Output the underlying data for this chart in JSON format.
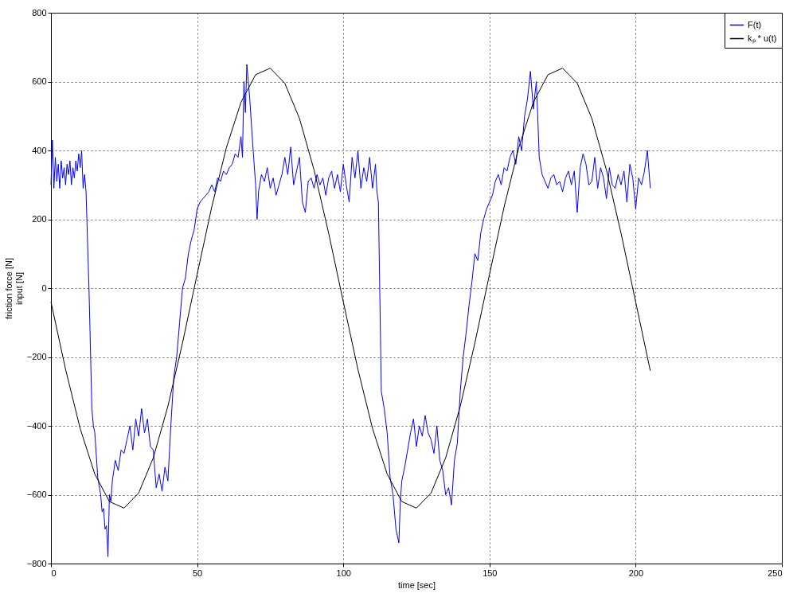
{
  "chart_data": {
    "type": "line",
    "xlabel": "time [sec]",
    "ylabel": "friction force [N]\ninput [N]",
    "xlim": [
      0,
      250
    ],
    "ylim": [
      -800,
      800
    ],
    "xticks": [
      0,
      50,
      100,
      150,
      200,
      250
    ],
    "yticks": [
      -800,
      -600,
      -400,
      -200,
      0,
      200,
      400,
      600,
      800
    ],
    "grid": true,
    "legend": "top right",
    "line_style": "solid",
    "series": [
      {
        "name": "F(t)",
        "color": "#0000ff",
        "x": [
          0,
          0.5,
          1,
          1.5,
          2,
          2.5,
          3,
          3.5,
          4,
          4.5,
          5,
          5.5,
          6,
          6.5,
          7,
          7.5,
          8,
          8.5,
          9,
          9.5,
          10,
          10.5,
          11,
          11.5,
          12,
          13,
          14,
          14.5,
          15,
          16,
          17,
          17.5,
          18,
          18.5,
          19,
          19.5,
          20,
          20.5,
          21,
          22,
          23,
          24,
          25,
          26,
          27,
          28,
          29,
          30,
          31,
          32,
          33,
          34,
          35,
          36,
          37,
          38,
          39,
          40,
          41,
          42,
          43,
          44,
          45,
          46,
          47,
          48,
          49,
          50,
          51,
          52,
          53,
          54,
          55,
          56,
          57,
          58,
          59,
          60,
          61,
          62,
          63,
          64,
          65,
          65.5,
          66,
          66.5,
          67,
          68,
          69,
          70,
          70.5,
          71,
          72,
          73,
          74,
          75,
          76,
          77,
          78,
          79,
          80,
          81,
          82,
          83,
          84,
          85,
          86,
          87,
          88,
          89,
          90,
          91,
          92,
          93,
          94,
          95,
          96,
          97,
          98,
          99,
          100,
          101,
          102,
          103,
          104,
          105,
          106,
          107,
          108,
          109,
          110,
          111,
          111.5,
          112,
          113,
          114,
          115,
          116,
          117,
          118,
          119,
          119.5,
          120,
          121,
          122,
          123,
          124,
          125,
          126,
          127,
          128,
          129,
          130,
          131,
          132,
          133,
          134,
          135,
          136,
          137,
          138,
          139,
          140,
          141,
          142,
          143,
          144,
          145,
          146,
          147,
          148,
          149,
          150,
          151,
          152,
          153,
          154,
          155,
          156,
          157,
          158,
          159,
          160,
          161,
          162,
          163,
          164,
          165,
          166,
          166.5,
          167,
          168,
          169,
          170,
          171,
          172,
          173,
          174,
          175,
          176,
          177,
          178,
          179,
          180,
          181,
          182,
          183,
          184,
          185,
          186,
          187,
          188,
          189,
          190,
          191,
          192,
          193,
          194,
          195,
          196,
          197,
          198,
          199,
          200,
          201,
          202,
          203,
          204,
          205
        ],
        "values": [
          300,
          430,
          290,
          380,
          310,
          360,
          290,
          370,
          320,
          350,
          300,
          360,
          330,
          370,
          300,
          350,
          320,
          370,
          340,
          390,
          350,
          400,
          290,
          330,
          280,
          0,
          -350,
          -400,
          -420,
          -550,
          -600,
          -650,
          -640,
          -700,
          -690,
          -780,
          -600,
          -620,
          -560,
          -500,
          -530,
          -470,
          -480,
          -440,
          -400,
          -470,
          -380,
          -430,
          -350,
          -420,
          -380,
          -460,
          -470,
          -580,
          -540,
          -590,
          -520,
          -560,
          -400,
          -260,
          -200,
          -100,
          0,
          30,
          100,
          140,
          170,
          230,
          250,
          260,
          270,
          280,
          300,
          280,
          320,
          310,
          340,
          330,
          350,
          360,
          390,
          380,
          440,
          380,
          600,
          510,
          650,
          550,
          420,
          300,
          200,
          280,
          330,
          310,
          350,
          290,
          320,
          270,
          300,
          330,
          380,
          330,
          410,
          300,
          340,
          380,
          250,
          220,
          310,
          320,
          290,
          330,
          300,
          320,
          270,
          320,
          340,
          290,
          330,
          280,
          360,
          300,
          250,
          380,
          320,
          400,
          290,
          350,
          310,
          380,
          290,
          360,
          280,
          250,
          -300,
          -350,
          -420,
          -550,
          -600,
          -700,
          -740,
          -620,
          -560,
          -520,
          -470,
          -420,
          -380,
          -460,
          -400,
          -430,
          -370,
          -420,
          -440,
          -480,
          -400,
          -500,
          -530,
          -600,
          -580,
          -630,
          -500,
          -450,
          -300,
          -200,
          -130,
          -50,
          20,
          100,
          80,
          160,
          200,
          230,
          250,
          270,
          310,
          330,
          300,
          350,
          340,
          380,
          400,
          360,
          440,
          400,
          500,
          550,
          630,
          520,
          600,
          500,
          380,
          330,
          310,
          290,
          320,
          330,
          300,
          310,
          280,
          320,
          340,
          300,
          340,
          220,
          350,
          390,
          360,
          300,
          310,
          380,
          290,
          350,
          320,
          260,
          350,
          300,
          290,
          330,
          300,
          340,
          250,
          360,
          320,
          230,
          320,
          300,
          340,
          400,
          290
        ]
      },
      {
        "name": "kₚ * u(t)",
        "color": "#000000",
        "x": [
          0,
          5,
          10,
          15,
          20,
          25,
          30,
          35,
          40,
          45,
          50,
          55,
          60,
          65,
          70,
          75,
          80,
          85,
          90,
          95,
          100,
          105,
          110,
          115,
          120,
          125,
          130,
          135,
          140,
          145,
          150,
          155,
          160,
          165,
          170,
          175,
          180,
          185,
          190,
          195,
          200,
          205
        ],
        "values": [
          -40,
          -236,
          -408,
          -540,
          -620,
          -639,
          -595,
          -493,
          -343,
          -159,
          40,
          236,
          408,
          540,
          620,
          639,
          595,
          493,
          343,
          159,
          -40,
          -236,
          -408,
          -540,
          -620,
          -639,
          -595,
          -493,
          -343,
          -159,
          40,
          236,
          408,
          540,
          620,
          639,
          595,
          493,
          343,
          159,
          -40,
          -240
        ]
      }
    ]
  }
}
